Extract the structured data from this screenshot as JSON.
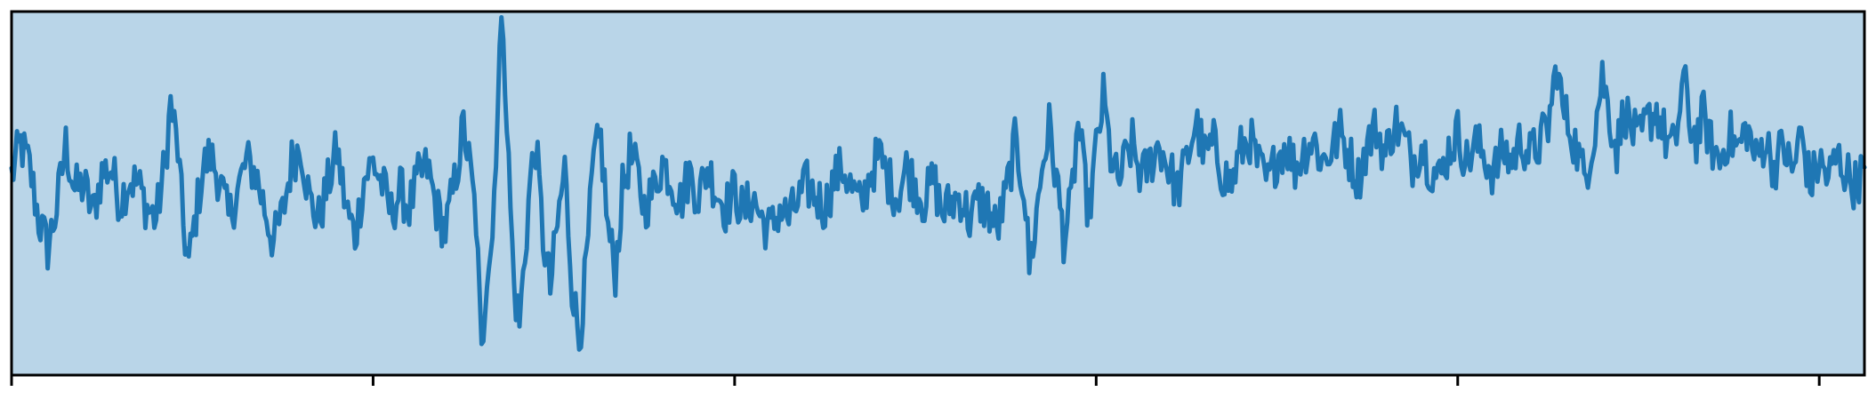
{
  "chart_data": {
    "type": "line",
    "title": "",
    "xlabel": "",
    "ylabel": "",
    "grid": false,
    "legend": "none",
    "xlim": [
      0,
      1025
    ],
    "ylim": [
      -3.1,
      3.2
    ],
    "xticks": [
      0,
      200,
      400,
      600,
      800,
      1000
    ],
    "tick_labels_shown": false,
    "colors": {
      "line": "#1f77b4",
      "plot_background": "#b9d5e8",
      "axes": "#000000"
    },
    "series": [
      {
        "anchors": [
          [
            0,
            0.35
          ],
          [
            5,
            0.9
          ],
          [
            10,
            0.5
          ],
          [
            15,
            -0.4
          ],
          [
            20,
            -0.9
          ],
          [
            25,
            -0.2
          ],
          [
            30,
            0.9
          ],
          [
            35,
            0.1
          ],
          [
            40,
            0.2
          ],
          [
            45,
            -0.3
          ],
          [
            50,
            0.4
          ],
          [
            55,
            0.5
          ],
          [
            60,
            -0.1
          ],
          [
            65,
            0.3
          ],
          [
            70,
            0.2
          ],
          [
            75,
            -0.2
          ],
          [
            80,
            -0.4
          ],
          [
            85,
            0.6
          ],
          [
            88,
            1.6
          ],
          [
            92,
            0.8
          ],
          [
            95,
            -0.5
          ],
          [
            98,
            -1.2
          ],
          [
            102,
            -0.3
          ],
          [
            106,
            0.5
          ],
          [
            110,
            0.7
          ],
          [
            115,
            0.3
          ],
          [
            120,
            -0.4
          ],
          [
            125,
            0.1
          ],
          [
            130,
            0.6
          ],
          [
            135,
            0.4
          ],
          [
            140,
            -0.2
          ],
          [
            145,
            -0.8
          ],
          [
            150,
            -0.3
          ],
          [
            155,
            0.6
          ],
          [
            160,
            0.9
          ],
          [
            165,
            -0.1
          ],
          [
            170,
            -0.4
          ],
          [
            175,
            0.2
          ],
          [
            180,
            0.8
          ],
          [
            185,
            -0.2
          ],
          [
            190,
            -0.7
          ],
          [
            195,
            0.3
          ],
          [
            200,
            0.6
          ],
          [
            205,
            0.2
          ],
          [
            210,
            -0.3
          ],
          [
            215,
            0.1
          ],
          [
            220,
            -0.2
          ],
          [
            225,
            0.3
          ],
          [
            230,
            0.5
          ],
          [
            235,
            -0.2
          ],
          [
            240,
            -0.6
          ],
          [
            245,
            0.2
          ],
          [
            250,
            1.2
          ],
          [
            253,
            0.6
          ],
          [
            257,
            -0.4
          ],
          [
            260,
            -2.8
          ],
          [
            263,
            -1.2
          ],
          [
            266,
            -0.7
          ],
          [
            270,
            2.5
          ],
          [
            272,
            3.0
          ],
          [
            275,
            0.5
          ],
          [
            278,
            -1.6
          ],
          [
            281,
            -2.2
          ],
          [
            284,
            -1.0
          ],
          [
            287,
            0.3
          ],
          [
            290,
            0.9
          ],
          [
            294,
            -0.7
          ],
          [
            298,
            -1.6
          ],
          [
            302,
            -0.5
          ],
          [
            306,
            0.5
          ],
          [
            310,
            -1.5
          ],
          [
            314,
            -2.5
          ],
          [
            318,
            -1.2
          ],
          [
            322,
            0.6
          ],
          [
            326,
            1.0
          ],
          [
            330,
            -0.6
          ],
          [
            334,
            -1.3
          ],
          [
            338,
            0.1
          ],
          [
            342,
            0.7
          ],
          [
            346,
            0.4
          ],
          [
            350,
            -0.2
          ],
          [
            355,
            0.1
          ],
          [
            360,
            0.6
          ],
          [
            365,
            0.3
          ],
          [
            370,
            -0.1
          ],
          [
            375,
            0.4
          ],
          [
            380,
            0.0
          ],
          [
            385,
            0.5
          ],
          [
            390,
            0.1
          ],
          [
            395,
            -0.2
          ],
          [
            400,
            0.1
          ],
          [
            405,
            -0.3
          ],
          [
            410,
            0.0
          ],
          [
            415,
            -0.4
          ],
          [
            420,
            -0.6
          ],
          [
            425,
            -0.2
          ],
          [
            430,
            -0.4
          ],
          [
            435,
            -0.1
          ],
          [
            440,
            0.2
          ],
          [
            445,
            0.0
          ],
          [
            450,
            -0.2
          ],
          [
            455,
            0.3
          ],
          [
            460,
            0.5
          ],
          [
            465,
            0.1
          ],
          [
            470,
            -0.2
          ],
          [
            475,
            0.4
          ],
          [
            480,
            0.7
          ],
          [
            485,
            0.3
          ],
          [
            490,
            0.0
          ],
          [
            495,
            0.5
          ],
          [
            500,
            0.2
          ],
          [
            505,
            -0.1
          ],
          [
            510,
            0.3
          ],
          [
            515,
            -0.3
          ],
          [
            520,
            -0.1
          ],
          [
            525,
            0.0
          ],
          [
            530,
            -0.4
          ],
          [
            535,
            -0.1
          ],
          [
            540,
            -0.2
          ],
          [
            545,
            -0.6
          ],
          [
            550,
            0.0
          ],
          [
            555,
            0.9
          ],
          [
            560,
            0.2
          ],
          [
            563,
            -1.2
          ],
          [
            566,
            -0.6
          ],
          [
            570,
            0.5
          ],
          [
            574,
            1.2
          ],
          [
            578,
            0.3
          ],
          [
            582,
            -0.7
          ],
          [
            586,
            -0.2
          ],
          [
            590,
            1.3
          ],
          [
            593,
            0.4
          ],
          [
            596,
            -0.3
          ],
          [
            600,
            0.8
          ],
          [
            604,
            1.7
          ],
          [
            608,
            0.7
          ],
          [
            612,
            0.2
          ],
          [
            616,
            0.6
          ],
          [
            620,
            0.9
          ],
          [
            625,
            0.3
          ],
          [
            630,
            0.6
          ],
          [
            635,
            0.9
          ],
          [
            640,
            0.5
          ],
          [
            645,
            0.1
          ],
          [
            650,
            0.6
          ],
          [
            655,
            1.3
          ],
          [
            660,
            0.7
          ],
          [
            665,
            0.9
          ],
          [
            670,
            0.4
          ],
          [
            675,
            0.2
          ],
          [
            680,
            0.8
          ],
          [
            685,
            1.0
          ],
          [
            690,
            0.5
          ],
          [
            695,
            0.2
          ],
          [
            700,
            0.7
          ],
          [
            705,
            0.9
          ],
          [
            710,
            0.5
          ],
          [
            715,
            0.8
          ],
          [
            720,
            1.0
          ],
          [
            725,
            0.6
          ],
          [
            730,
            0.8
          ],
          [
            735,
            1.1
          ],
          [
            740,
            0.7
          ],
          [
            745,
            0.3
          ],
          [
            750,
            0.9
          ],
          [
            755,
            1.2
          ],
          [
            760,
            0.7
          ],
          [
            765,
            1.3
          ],
          [
            770,
            1.0
          ],
          [
            775,
            0.6
          ],
          [
            780,
            0.9
          ],
          [
            785,
            0.5
          ],
          [
            790,
            0.3
          ],
          [
            795,
            0.8
          ],
          [
            800,
            1.1
          ],
          [
            805,
            0.6
          ],
          [
            810,
            0.9
          ],
          [
            815,
            0.7
          ],
          [
            820,
            0.4
          ],
          [
            825,
            0.8
          ],
          [
            830,
            0.6
          ],
          [
            835,
            1.0
          ],
          [
            840,
            0.7
          ],
          [
            845,
            0.9
          ],
          [
            850,
            1.2
          ],
          [
            855,
            2.3
          ],
          [
            858,
            1.5
          ],
          [
            862,
            1.2
          ],
          [
            866,
            0.8
          ],
          [
            870,
            0.3
          ],
          [
            875,
            1.0
          ],
          [
            880,
            2.1
          ],
          [
            884,
            1.4
          ],
          [
            888,
            0.8
          ],
          [
            892,
            1.5
          ],
          [
            896,
            1.2
          ],
          [
            900,
            0.9
          ],
          [
            905,
            1.3
          ],
          [
            910,
            1.5
          ],
          [
            915,
            1.0
          ],
          [
            920,
            0.8
          ],
          [
            925,
            2.1
          ],
          [
            928,
            1.3
          ],
          [
            932,
            1.0
          ],
          [
            936,
            1.4
          ],
          [
            940,
            0.9
          ],
          [
            945,
            0.6
          ],
          [
            950,
            1.1
          ],
          [
            955,
            0.8
          ],
          [
            960,
            1.2
          ],
          [
            965,
            0.6
          ],
          [
            970,
            1.0
          ],
          [
            975,
            0.5
          ],
          [
            980,
            0.9
          ],
          [
            985,
            0.4
          ],
          [
            990,
            1.1
          ],
          [
            995,
            0.2
          ],
          [
            1000,
            0.6
          ],
          [
            1005,
            0.3
          ],
          [
            1010,
            0.7
          ],
          [
            1015,
            0.4
          ],
          [
            1020,
            0.2
          ],
          [
            1025,
            0.5
          ]
        ]
      }
    ]
  }
}
